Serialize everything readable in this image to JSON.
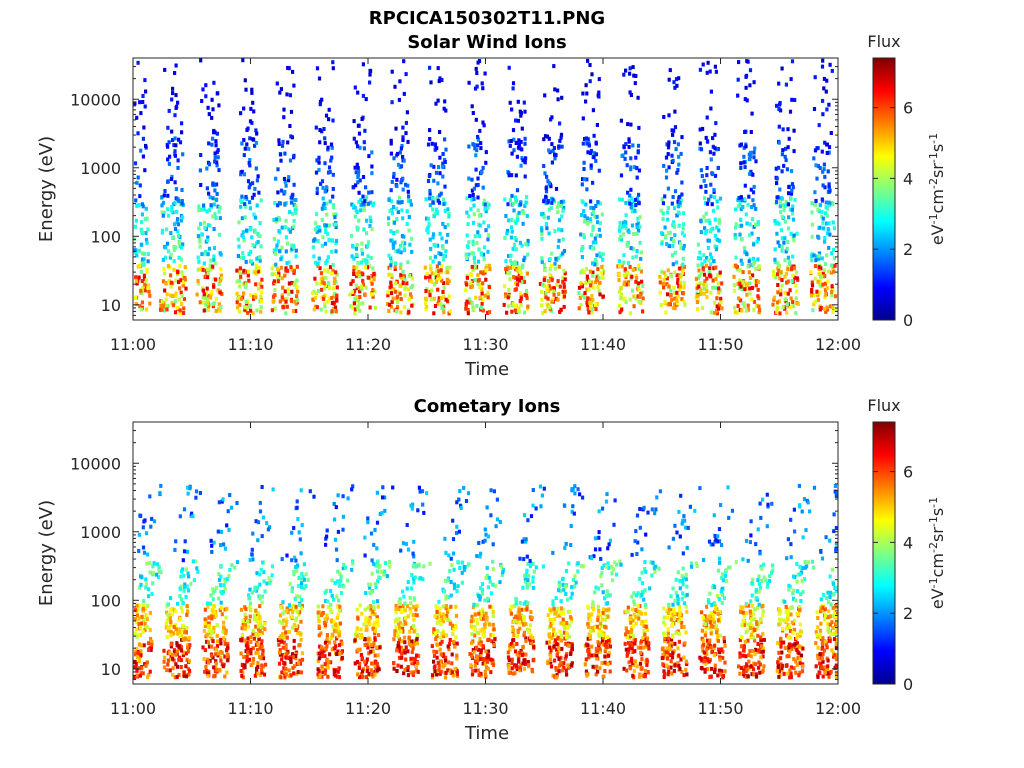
{
  "figure_title": "RPCICA150302T11.PNG",
  "colormap": [
    "#00008f",
    "#0000ff",
    "#0080ff",
    "#00ffff",
    "#80ff80",
    "#ffff00",
    "#ff8000",
    "#ff0000",
    "#800000"
  ],
  "chart_data": [
    {
      "type": "heatmap",
      "title": "Solar Wind Ions",
      "xlabel": "Time",
      "ylabel": "Energy (eV)",
      "x_ticks": [
        "11:00",
        "11:10",
        "11:20",
        "11:30",
        "11:40",
        "11:50",
        "12:00"
      ],
      "xlim_minutes": [
        0,
        60
      ],
      "y_scale": "log",
      "y_ticks": [
        "10",
        "100",
        "1000",
        "10000"
      ],
      "ylim_eV": [
        6,
        40000
      ],
      "colorbar": {
        "title": "Flux",
        "units": "eV-1cm-2sr-1s-1",
        "ticks": [
          "0",
          "2",
          "4",
          "6"
        ],
        "range": [
          0,
          7.4
        ]
      },
      "band_center_minutes": [
        0.2,
        3.3,
        6.4,
        9.8,
        12.8,
        16.2,
        19.4,
        22.6,
        25.8,
        29.2,
        32.5,
        35.6,
        38.9,
        42.2,
        45.8,
        48.9,
        52.1,
        55.4,
        58.6
      ],
      "bands": [
        {
          "ymin_eV": 8,
          "ymax_eV": 40,
          "flux_min": 3.5,
          "flux_max": 6.8
        },
        {
          "ymin_eV": 40,
          "ymax_eV": 400,
          "flux_min": 1.8,
          "flux_max": 3.8
        },
        {
          "ymin_eV": 300,
          "ymax_eV": 3000,
          "flux_min": 0.8,
          "flux_max": 2.0
        },
        {
          "ymin_eV": 2000,
          "ymax_eV": 40000,
          "flux_min": 0.4,
          "flux_max": 1.2
        }
      ]
    },
    {
      "type": "heatmap",
      "title": "Cometary Ions",
      "xlabel": "Time",
      "ylabel": "Energy (eV)",
      "x_ticks": [
        "11:00",
        "11:10",
        "11:20",
        "11:30",
        "11:40",
        "11:50",
        "12:00"
      ],
      "xlim_minutes": [
        0,
        60
      ],
      "y_scale": "log",
      "y_ticks": [
        "10",
        "100",
        "1000",
        "10000"
      ],
      "ylim_eV": [
        6,
        40000
      ],
      "colorbar": {
        "title": "Flux",
        "units": "eV-1cm-2sr-1s-1",
        "ticks": [
          "0",
          "2",
          "4",
          "6"
        ],
        "range": [
          0,
          7.4
        ]
      },
      "band_center_minutes": [
        0.4,
        3.6,
        6.9,
        10.1,
        13.3,
        16.6,
        19.8,
        23.1,
        26.4,
        29.6,
        32.9,
        36.2,
        39.4,
        42.7,
        46.0,
        49.2,
        52.5,
        55.8,
        59.0
      ],
      "bands": [
        {
          "ymin_eV": 8,
          "ymax_eV": 30,
          "flux_min": 5.0,
          "flux_max": 7.2
        },
        {
          "ymin_eV": 30,
          "ymax_eV": 90,
          "flux_min": 4.0,
          "flux_max": 6.0
        },
        {
          "ymin_eV": 90,
          "ymax_eV": 400,
          "flux_min": 2.2,
          "flux_max": 4.0
        },
        {
          "ymin_eV": 400,
          "ymax_eV": 5000,
          "flux_min": 1.0,
          "flux_max": 2.5
        }
      ]
    }
  ]
}
